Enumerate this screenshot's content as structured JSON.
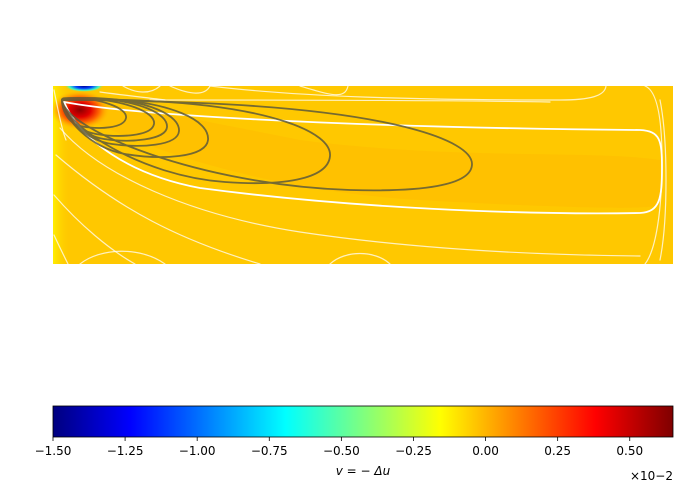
{
  "chart_data": {
    "type": "heatmap",
    "field_name": "v = −Δu",
    "colormap": "jet",
    "colorbar": {
      "label": "v = − Δu",
      "vmin": -1.5,
      "vmax": 0.65,
      "offset_text": "×10−2",
      "ticks": [
        -1.5,
        -1.25,
        -1.0,
        -0.75,
        -0.5,
        -0.25,
        0.0,
        0.25,
        0.5
      ],
      "tick_labels": [
        "−1.50",
        "−1.25",
        "−1.00",
        "−0.75",
        "−0.50",
        "−0.25",
        "0.00",
        "0.25",
        "0.50"
      ]
    },
    "field_features": [
      {
        "kind": "background",
        "value": 0.08
      },
      {
        "kind": "positive-peak",
        "value": 0.65,
        "location": "upper-left"
      },
      {
        "kind": "negative-peak",
        "value": -1.5,
        "location": "top-left edge"
      }
    ],
    "contours": {
      "white_lines": "level sets of v",
      "dark_lines": "nested closed loops around the positive peak"
    }
  }
}
